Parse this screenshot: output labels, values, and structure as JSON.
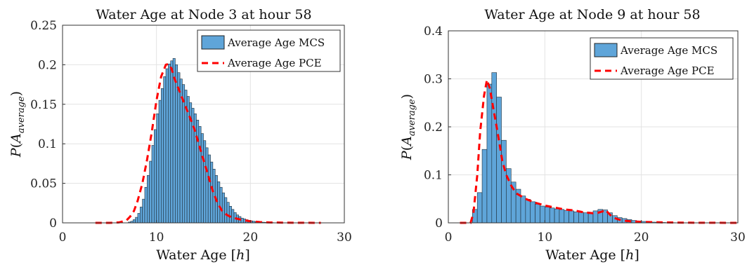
{
  "chart_data": [
    {
      "type": "bar",
      "title": "Water Age at Node 3 at hour 58",
      "xlabel": "Water Age [h]",
      "ylabel": "P(A_average)",
      "xlim": [
        0,
        30
      ],
      "ylim": [
        0,
        0.25
      ],
      "xticks": [
        "0",
        "10",
        "20",
        "30"
      ],
      "yticks": [
        "0",
        "0.05",
        "0.1",
        "0.15",
        "0.2",
        "0.25"
      ],
      "grid": true,
      "legend_position": "top-right",
      "bar_color": "#5fa5d9",
      "line_color": "#ff0000",
      "histogram": {
        "name": "Average Age MCS",
        "bin_width": 0.25,
        "x_start": 7.0,
        "values": [
          0.001,
          0.002,
          0.004,
          0.007,
          0.012,
          0.02,
          0.03,
          0.045,
          0.06,
          0.078,
          0.098,
          0.118,
          0.138,
          0.155,
          0.17,
          0.185,
          0.195,
          0.201,
          0.205,
          0.208,
          0.2,
          0.19,
          0.182,
          0.175,
          0.168,
          0.16,
          0.152,
          0.145,
          0.138,
          0.13,
          0.122,
          0.113,
          0.104,
          0.095,
          0.086,
          0.077,
          0.068,
          0.06,
          0.052,
          0.045,
          0.038,
          0.032,
          0.026,
          0.021,
          0.017,
          0.013,
          0.01,
          0.008,
          0.006,
          0.005,
          0.004,
          0.003,
          0.0025,
          0.002,
          0.0015,
          0.0012,
          0.001,
          0.0008,
          0.0006,
          0.0005,
          0.0004,
          0.0003
        ]
      },
      "pdf": {
        "name": "Average Age PCE",
        "x": [
          3.5,
          5,
          6,
          6.8,
          7.2,
          7.6,
          8,
          8.5,
          9,
          9.5,
          10,
          10.5,
          11,
          11.3,
          11.6,
          12,
          12.5,
          13,
          13.5,
          14,
          14.5,
          15,
          15.5,
          16,
          16.5,
          17,
          17.5,
          18,
          19,
          20,
          21,
          22,
          24,
          27.5
        ],
        "y": [
          0,
          0,
          0.0005,
          0.003,
          0.008,
          0.015,
          0.028,
          0.05,
          0.08,
          0.115,
          0.155,
          0.185,
          0.2,
          0.201,
          0.195,
          0.18,
          0.165,
          0.15,
          0.135,
          0.12,
          0.1,
          0.08,
          0.06,
          0.04,
          0.025,
          0.015,
          0.01,
          0.007,
          0.004,
          0.002,
          0.001,
          0.0005,
          0.0002,
          0
        ]
      }
    },
    {
      "type": "bar",
      "title": "Water Age at Node 9 at hour 58",
      "xlabel": "Water Age [h]",
      "ylabel": "P(A_average)",
      "xlim": [
        0,
        30
      ],
      "ylim": [
        0,
        0.4
      ],
      "xticks": [
        "0",
        "10",
        "20",
        "30"
      ],
      "yticks": [
        "0",
        "0.1",
        "0.2",
        "0.3",
        "0.4"
      ],
      "grid": true,
      "legend_position": "top-right",
      "bar_color": "#5fa5d9",
      "line_color": "#ff0000",
      "histogram": {
        "name": "Average Age MCS",
        "bin_width": 0.5,
        "x_start": 2.5,
        "values": [
          0.028,
          0.063,
          0.153,
          0.289,
          0.313,
          0.262,
          0.172,
          0.113,
          0.085,
          0.07,
          0.056,
          0.049,
          0.044,
          0.039,
          0.035,
          0.033,
          0.031,
          0.029,
          0.028,
          0.026,
          0.025,
          0.023,
          0.022,
          0.021,
          0.021,
          0.025,
          0.028,
          0.027,
          0.021,
          0.015,
          0.011,
          0.009,
          0.007,
          0.005,
          0.004,
          0.003,
          0.002,
          0.0015,
          0.001,
          0.0008,
          0.0005,
          0.0004,
          0.0003,
          0.0002
        ]
      },
      "pdf": {
        "name": "Average Age PCE",
        "x": [
          1.2,
          2.3,
          2.6,
          3,
          3.3,
          3.7,
          4,
          4.3,
          4.6,
          5,
          5.3,
          5.6,
          6,
          6.5,
          7,
          8,
          9,
          10,
          11,
          12,
          13,
          14,
          15,
          15.5,
          16,
          16.3,
          16.6,
          17,
          17.5,
          18,
          19,
          20,
          22,
          25,
          30
        ],
        "y": [
          0,
          0,
          0.02,
          0.1,
          0.19,
          0.265,
          0.298,
          0.28,
          0.245,
          0.2,
          0.165,
          0.128,
          0.1,
          0.078,
          0.062,
          0.05,
          0.042,
          0.036,
          0.032,
          0.028,
          0.026,
          0.022,
          0.02,
          0.021,
          0.024,
          0.027,
          0.02,
          0.012,
          0.008,
          0.005,
          0.003,
          0.002,
          0.001,
          0.0003,
          0
        ]
      }
    }
  ]
}
